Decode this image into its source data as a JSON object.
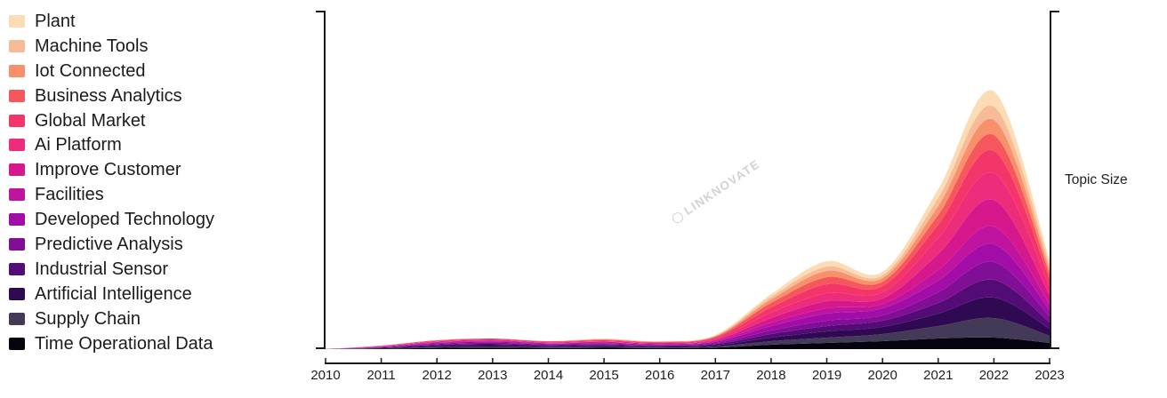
{
  "y_axis": {
    "label": "Topic Size"
  },
  "watermark": {
    "text": "LINKNOVATE"
  },
  "axis": {
    "color": "#1a1a1a"
  },
  "chart_data": {
    "type": "area",
    "variant": "stacked-streamgraph",
    "title": "",
    "xlabel": "",
    "ylabel": "Topic Size",
    "grid": false,
    "legend_position": "left",
    "x": [
      2010,
      2011,
      2012,
      2013,
      2014,
      2015,
      2016,
      2017,
      2018,
      2019,
      2020,
      2021,
      2022,
      2023
    ],
    "x_tick_labels": [
      "2010",
      "2011",
      "2012",
      "2013",
      "2014",
      "2015",
      "2016",
      "2017",
      "2018",
      "2019",
      "2020",
      "2021",
      "2022",
      "2023"
    ],
    "y_ticks_shown": false,
    "note": "Series listed top-of-stack first (matches legend order); values are estimated topic sizes in pixel-equivalent units",
    "series": [
      {
        "name": "Plant",
        "color": "#FBDCB4",
        "values": [
          0,
          0,
          0,
          0,
          0,
          0.6,
          0.3,
          0.7,
          3,
          6,
          4,
          10,
          17,
          5
        ]
      },
      {
        "name": "Machine Tools",
        "color": "#F8BB97",
        "values": [
          0,
          0,
          0,
          0,
          0,
          0.4,
          0.2,
          0.5,
          3,
          5,
          3,
          9,
          15,
          5
        ]
      },
      {
        "name": "Iot Connected",
        "color": "#F8916B",
        "values": [
          0,
          0,
          0,
          0,
          0,
          0.4,
          0.2,
          0.7,
          4,
          7,
          4,
          10,
          17,
          5
        ]
      },
      {
        "name": "Business Analytics",
        "color": "#F6575C",
        "values": [
          0,
          0.2,
          0.5,
          0.5,
          0.4,
          0.6,
          0.5,
          1.0,
          5,
          8,
          5,
          11,
          18,
          6
        ]
      },
      {
        "name": "Global Market",
        "color": "#F43569",
        "values": [
          0,
          0.3,
          0.8,
          1.0,
          0.8,
          1.0,
          0.8,
          1.6,
          6,
          10,
          7,
          15,
          25,
          8
        ]
      },
      {
        "name": "Ai Platform",
        "color": "#ED2C7C",
        "values": [
          0,
          0.2,
          0.5,
          0.5,
          0.4,
          0.6,
          0.5,
          1.2,
          6,
          9,
          7,
          18,
          30,
          10
        ]
      },
      {
        "name": "Improve Customer",
        "color": "#D6188C",
        "values": [
          0,
          0.3,
          0.7,
          0.8,
          0.6,
          0.8,
          0.6,
          1.2,
          5,
          8,
          6,
          18,
          30,
          10
        ]
      },
      {
        "name": "Facilities",
        "color": "#BE14A0",
        "values": [
          0,
          0.3,
          0.7,
          0.8,
          0.6,
          0.7,
          0.5,
          0.9,
          4,
          6,
          5,
          12,
          20,
          7
        ]
      },
      {
        "name": "Developed Technology",
        "color": "#A10DA6",
        "values": [
          0,
          0.4,
          1.0,
          1.2,
          0.9,
          1.0,
          0.8,
          1.3,
          5,
          8,
          8,
          13,
          20,
          7
        ]
      },
      {
        "name": "Predictive Analysis",
        "color": "#800F96",
        "values": [
          0,
          0.4,
          1.0,
          1.2,
          0.9,
          1.0,
          0.8,
          1.2,
          4,
          6,
          6,
          12,
          20,
          7
        ]
      },
      {
        "name": "Industrial Sensor",
        "color": "#530B75",
        "values": [
          0,
          0.5,
          1.2,
          1.5,
          1.1,
          1.2,
          0.9,
          1.3,
          4,
          6,
          7,
          12,
          20,
          7
        ]
      },
      {
        "name": "Artificial Intelligence",
        "color": "#2F0A52",
        "values": [
          0,
          0.5,
          1.2,
          1.5,
          1.1,
          1.2,
          0.9,
          1.4,
          4,
          7,
          8,
          14,
          23,
          8
        ]
      },
      {
        "name": "Supply Chain",
        "color": "#433A58",
        "values": [
          0,
          0.4,
          1.0,
          1.2,
          0.9,
          1.0,
          0.8,
          1.2,
          4,
          6,
          8,
          14,
          22,
          8
        ]
      },
      {
        "name": "Time Operational Data",
        "color": "#06030F",
        "values": [
          0,
          0.5,
          1.4,
          1.8,
          1.3,
          1.5,
          1.2,
          1.8,
          5,
          7,
          9,
          12,
          13,
          7
        ]
      }
    ]
  }
}
